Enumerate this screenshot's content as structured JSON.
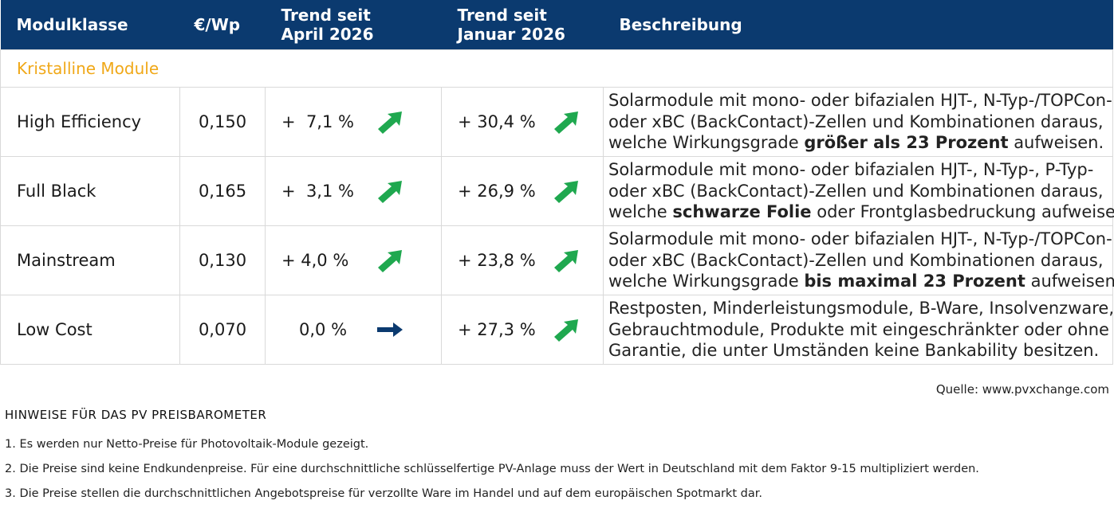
{
  "header": {
    "col1": "Modulklasse",
    "col2": "€/Wp",
    "col3_line1": "Trend seit",
    "col3_line2": "April 2026",
    "col4_line1": "Trend seit",
    "col4_line2": "Januar 2026",
    "col5": "Beschreibung"
  },
  "category": "Kristalline Module",
  "rows": [
    {
      "name": "High Efficiency",
      "price": "0,150",
      "trend_april": "+  7,1 %",
      "trend_april_icon": "arrow-up-right-icon",
      "trend_januar": "+ 30,4 %",
      "trend_januar_icon": "arrow-up-right-icon",
      "desc1": "Solarmodule mit mono- oder bifazialen HJT-, N-Typ-/TOPCon-",
      "desc2": "oder xBC (BackContact)-Zellen und Kombinationen daraus,",
      "desc3_pre": "welche Wirkungsgrade ",
      "desc3_bold": "größer als 23 Prozent",
      "desc3_post": " aufweisen."
    },
    {
      "name": "Full Black",
      "price": "0,165",
      "trend_april": "+  3,1 %",
      "trend_april_icon": "arrow-up-right-icon",
      "trend_januar": "+ 26,9 %",
      "trend_januar_icon": "arrow-up-right-icon",
      "desc1": "Solarmodule mit mono- oder bifazialen HJT-, N-Typ-, P-Typ-",
      "desc2": "oder xBC (BackContact)-Zellen und Kombinationen daraus,",
      "desc3_pre": "welche ",
      "desc3_bold": "schwarze Folie",
      "desc3_post": " oder Frontglasbedruckung aufweisen."
    },
    {
      "name": "Mainstream",
      "price": "0,130",
      "trend_april": "+ 4,0 %",
      "trend_april_icon": "arrow-up-right-icon",
      "trend_januar": "+ 23,8 %",
      "trend_januar_icon": "arrow-up-right-icon",
      "desc1": "Solarmodule mit mono- oder bifazialen HJT-, N-Typ-/TOPCon-",
      "desc2": "oder xBC (BackContact)-Zellen und Kombinationen daraus,",
      "desc3_pre": "welche Wirkungsgrade ",
      "desc3_bold": "bis maximal 23 Prozent",
      "desc3_post": " aufweisen."
    },
    {
      "name": "Low Cost",
      "price": "0,070",
      "trend_april": "0,0 %",
      "trend_april_icon": "arrow-right-icon",
      "trend_januar": "+ 27,3 %",
      "trend_januar_icon": "arrow-up-right-icon",
      "desc1": "Restposten, Minderleistungsmodule, B-Ware, Insolvenzware,",
      "desc2": "Gebrauchtmodule, Produkte mit eingeschränkter oder ohne",
      "desc3_pre": "Garantie, die unter Umständen keine Bankability besitzen.",
      "desc3_bold": "",
      "desc3_post": ""
    }
  ],
  "colors": {
    "header_bg": "#0b3a6f",
    "category_text": "#f0a818",
    "arrow_up": "#1fa84f",
    "arrow_flat": "#0b3a6f"
  },
  "source": "Quelle: www.pvxchange.com",
  "notes_title": "HINWEISE FÜR DAS PV PREISBAROMETER",
  "notes": [
    "1.  Es werden nur Netto-Preise für Photovoltaik-Module gezeigt.",
    "2. Die Preise sind keine Endkundenpreise. Für eine durchschnittliche schlüsselfertige PV-Anlage muss der Wert in Deutschland mit dem Faktor 9-15 multipliziert werden.",
    "3. Die Preise stellen die durchschnittlichen Angebotspreise für verzollte Ware im Handel und auf dem europäischen Spotmarkt dar."
  ]
}
